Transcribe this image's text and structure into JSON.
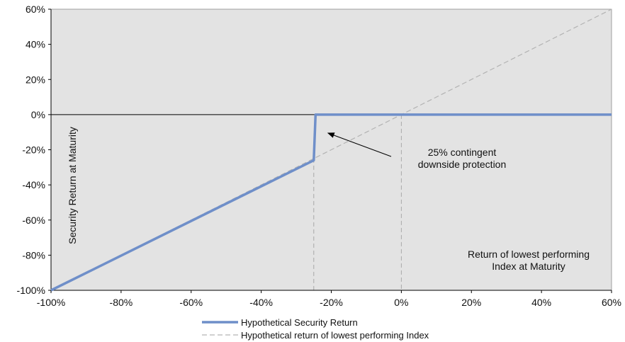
{
  "chart_data": {
    "type": "line",
    "title": "",
    "xlabel": "Return of lowest performing Index at Maturity",
    "ylabel": "Security Return at Maturity",
    "xlim": [
      -100,
      60
    ],
    "ylim": [
      -100,
      60
    ],
    "x_ticks": [
      -100,
      -80,
      -60,
      -40,
      -20,
      0,
      20,
      40,
      60
    ],
    "y_ticks": [
      -100,
      -80,
      -60,
      -40,
      -20,
      0,
      20,
      40,
      60
    ],
    "x_tick_labels": [
      "-100%",
      "-80%",
      "-60%",
      "-40%",
      "-20%",
      "0%",
      "20%",
      "40%",
      "60%"
    ],
    "y_tick_labels": [
      "-100%",
      "-80%",
      "-60%",
      "-40%",
      "-20%",
      "0%",
      "20%",
      "40%",
      "60%"
    ],
    "grid": false,
    "legend_position": "bottom-center",
    "series": [
      {
        "name": "Hypothetical Security Return",
        "color": "#6f8fc9",
        "style": "solid",
        "points": [
          [
            -100,
            -100
          ],
          [
            -25,
            -26
          ],
          [
            -24.5,
            0
          ],
          [
            60,
            0
          ]
        ]
      },
      {
        "name": "Hypothetical return of lowest performing Index",
        "color": "#b3b3b3",
        "style": "dashed",
        "points": [
          [
            -100,
            -100
          ],
          [
            60,
            60
          ]
        ]
      }
    ],
    "reference_lines": [
      {
        "axis": "x",
        "value": -25,
        "style": "dashed"
      },
      {
        "axis": "x",
        "value": 0,
        "style": "dashed"
      },
      {
        "axis": "y",
        "value": 0,
        "style": "solid"
      }
    ],
    "annotation": {
      "lines": [
        "25% contingent",
        "downside protection"
      ],
      "arrow_to": [
        -25,
        0
      ]
    },
    "colors": {
      "plot_background": "#e3e3e3",
      "axis": "#000000"
    }
  }
}
